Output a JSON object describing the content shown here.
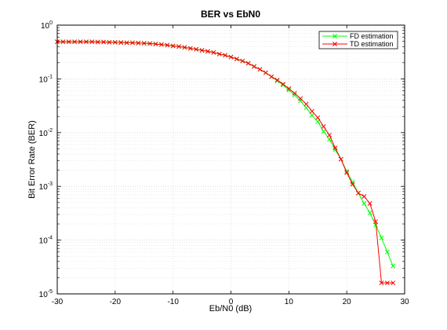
{
  "chart_data": {
    "type": "line",
    "title": "BER vs EbN0",
    "xlabel": "Eb/N0 (dB)",
    "ylabel": "Bit Error Rate (BER)",
    "xlim": [
      -30,
      30
    ],
    "ylim": [
      1e-05,
      1
    ],
    "yscale": "log",
    "grid": true,
    "minor_grid": true,
    "legend_position": "top-right",
    "x_ticks": [
      -30,
      -20,
      -10,
      0,
      10,
      20,
      30
    ],
    "x_tick_labels": [
      "-30",
      "-20",
      "-10",
      "0",
      "10",
      "20",
      "30"
    ],
    "y_ticks": [
      {
        "value": 1,
        "base": "10",
        "exp": "0"
      },
      {
        "value": 0.1,
        "base": "10",
        "exp": "-1"
      },
      {
        "value": 0.01,
        "base": "10",
        "exp": "-2"
      },
      {
        "value": 0.001,
        "base": "10",
        "exp": "-3"
      },
      {
        "value": 0.0001,
        "base": "10",
        "exp": "-4"
      },
      {
        "value": 1e-05,
        "base": "10",
        "exp": "-5"
      }
    ],
    "x": [
      -30,
      -29,
      -28,
      -27,
      -26,
      -25,
      -24,
      -23,
      -22,
      -21,
      -20,
      -19,
      -18,
      -17,
      -16,
      -15,
      -14,
      -13,
      -12,
      -11,
      -10,
      -9,
      -8,
      -7,
      -6,
      -5,
      -4,
      -3,
      -2,
      -1,
      0,
      1,
      2,
      3,
      4,
      5,
      6,
      7,
      8,
      9,
      10,
      11,
      12,
      13,
      14,
      15,
      16,
      17,
      18,
      19,
      20,
      21,
      22,
      23,
      24,
      25,
      26,
      27,
      28
    ],
    "series": [
      {
        "name": "FD estimation",
        "color": "#00ff00",
        "marker": "x",
        "values": [
          0.49,
          0.49,
          0.49,
          0.49,
          0.49,
          0.49,
          0.49,
          0.485,
          0.485,
          0.48,
          0.48,
          0.475,
          0.47,
          0.47,
          0.465,
          0.46,
          0.455,
          0.445,
          0.435,
          0.425,
          0.41,
          0.4,
          0.385,
          0.37,
          0.355,
          0.34,
          0.325,
          0.31,
          0.29,
          0.275,
          0.255,
          0.235,
          0.215,
          0.195,
          0.17,
          0.15,
          0.13,
          0.11,
          0.092,
          0.077,
          0.062,
          0.05,
          0.039,
          0.029,
          0.021,
          0.016,
          0.0105,
          0.0075,
          0.0048,
          0.0032,
          0.0019,
          0.0012,
          0.00075,
          0.00048,
          0.00032,
          0.00019,
          0.00011,
          6e-05,
          3.3e-05
        ]
      },
      {
        "name": "TD estimation",
        "color": "#ff0000",
        "marker": "x",
        "values": [
          0.49,
          0.49,
          0.49,
          0.49,
          0.49,
          0.49,
          0.49,
          0.485,
          0.485,
          0.48,
          0.48,
          0.475,
          0.47,
          0.47,
          0.465,
          0.46,
          0.455,
          0.445,
          0.435,
          0.425,
          0.41,
          0.4,
          0.385,
          0.37,
          0.355,
          0.34,
          0.325,
          0.31,
          0.29,
          0.275,
          0.255,
          0.235,
          0.215,
          0.195,
          0.17,
          0.15,
          0.13,
          0.11,
          0.095,
          0.08,
          0.066,
          0.054,
          0.043,
          0.034,
          0.025,
          0.019,
          0.013,
          0.009,
          0.0052,
          0.0032,
          0.0018,
          0.0011,
          0.00075,
          0.00065,
          0.00048,
          0.00022,
          1.6e-05,
          1.6e-05,
          1.6e-05
        ]
      }
    ]
  }
}
